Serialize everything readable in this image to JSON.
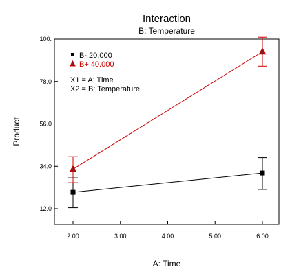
{
  "chart_data": {
    "type": "line",
    "title": "Interaction",
    "subtitle": "B: Temperature",
    "xlabel": "A: Time",
    "ylabel": "Product",
    "xlim": [
      2.0,
      6.0
    ],
    "ylim": [
      12.0,
      100.0
    ],
    "xticks": [
      "2.00",
      "3.00",
      "4.00",
      "5.00",
      "6.00"
    ],
    "yticks": [
      "12.0",
      "34.0",
      "56.0",
      "78.0",
      "100."
    ],
    "grid": false,
    "legend": {
      "placement": "top-left",
      "entries": [
        {
          "label": "B- 20.000",
          "color": "#000000",
          "marker": "square"
        },
        {
          "label": "B+ 40.000",
          "color": "#cc0000",
          "marker": "triangle"
        }
      ],
      "notes": [
        "X1 = A: Time",
        "X2 = B: Temperature"
      ]
    },
    "series": [
      {
        "name": "B- 20.000",
        "color": "#000000",
        "marker": "square",
        "x": [
          2.0,
          6.0
        ],
        "y": [
          20.5,
          30.5
        ],
        "ci_low": [
          12.5,
          22.0
        ],
        "ci_high": [
          28.0,
          38.5
        ]
      },
      {
        "name": "B+ 40.000",
        "color": "#cc0000",
        "marker": "triangle",
        "x": [
          2.0,
          6.0
        ],
        "y": [
          32.5,
          93.5
        ],
        "ci_low": [
          25.5,
          86.0
        ],
        "ci_high": [
          39.0,
          101.0
        ]
      }
    ]
  }
}
